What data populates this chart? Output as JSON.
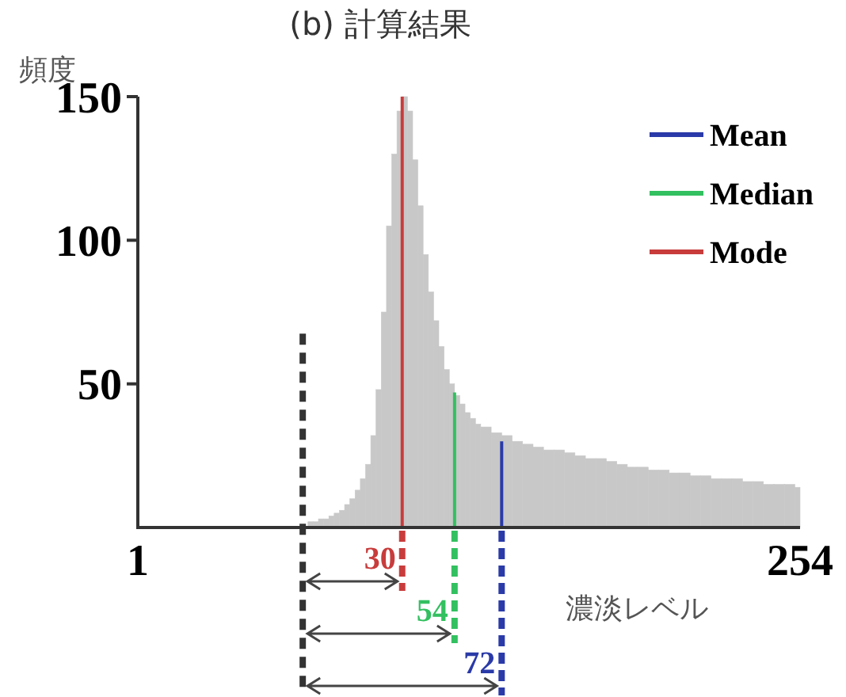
{
  "chart_data": {
    "type": "histogram",
    "title": "(b) 計算結果",
    "ylabel": "頻度",
    "xlabel": "濃淡レベル",
    "bins": [
      66,
      68,
      70,
      72,
      74,
      76,
      78,
      80,
      82,
      84,
      86,
      88,
      90,
      92,
      94,
      96,
      98,
      100,
      102,
      104,
      106,
      108,
      110,
      112,
      114,
      116,
      118,
      120,
      122,
      124,
      126,
      128,
      130,
      132,
      136,
      140,
      144,
      148,
      152,
      156,
      160,
      164,
      168,
      172,
      176,
      180,
      184,
      188,
      192,
      196,
      200,
      204,
      208,
      212,
      216,
      220,
      224,
      228,
      232,
      236,
      240,
      244,
      248,
      252,
      254
    ],
    "values": [
      2,
      2,
      3,
      3,
      4,
      5,
      6,
      8,
      10,
      13,
      17,
      22,
      32,
      48,
      75,
      105,
      130,
      145,
      150,
      145,
      128,
      112,
      95,
      82,
      72,
      63,
      55,
      50,
      46,
      43,
      40,
      38,
      36,
      35,
      33,
      32,
      30,
      29,
      28,
      27,
      27,
      26,
      25,
      24,
      24,
      23,
      22,
      21,
      21,
      20,
      20,
      19,
      19,
      18,
      18,
      17,
      17,
      17,
      16,
      16,
      15,
      15,
      15,
      14
    ],
    "color": "#c8c8c8",
    "series": [
      {
        "type": "line",
        "name": "Mean",
        "color": "#2a3aa8",
        "x": [
          140,
          140
        ],
        "values": [
          0,
          30
        ]
      },
      {
        "type": "line",
        "name": "Median",
        "color": "#33c060",
        "x": [
          122,
          122
        ],
        "values": [
          0,
          47
        ]
      },
      {
        "type": "line",
        "name": "Mode",
        "color": "#c83c3c",
        "x": [
          102,
          102
        ],
        "values": [
          0,
          150
        ]
      }
    ],
    "ref_lines": [
      {
        "axis": "x",
        "value": 64,
        "color": "#333333",
        "line_style": "dashed"
      }
    ],
    "annotations": [
      "30",
      "54",
      "72"
    ],
    "xlim": [
      1,
      254
    ],
    "xticks": [
      1,
      254
    ],
    "ylim": [
      0,
      150
    ],
    "yticks": [
      50,
      100,
      150
    ],
    "legend": "top right",
    "grid": false
  }
}
